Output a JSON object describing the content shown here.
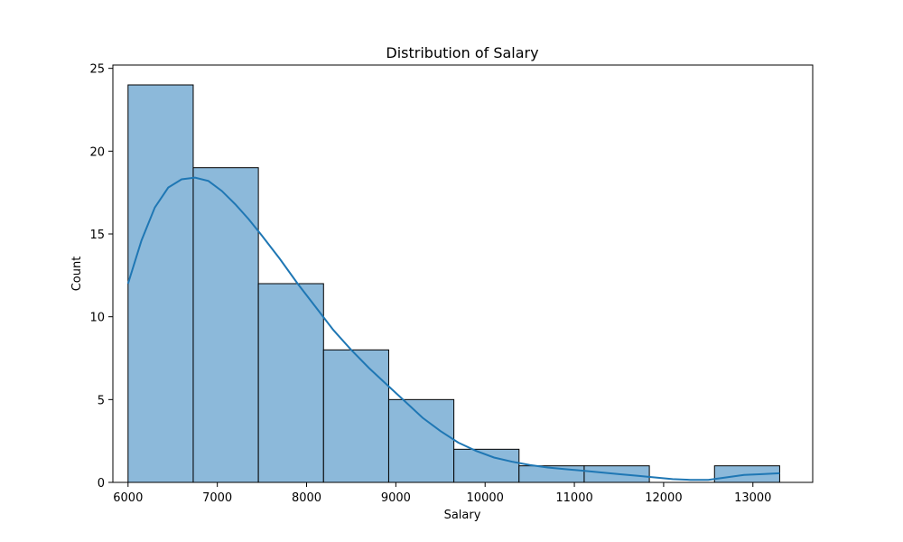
{
  "chart_data": {
    "type": "bar",
    "subtype": "histogram",
    "title": "Distribution of Salary",
    "xlabel": "Salary",
    "ylabel": "Count",
    "xlim": [
      5830,
      13670
    ],
    "ylim": [
      0,
      25.2
    ],
    "x_ticks": [
      6000,
      7000,
      8000,
      9000,
      10000,
      11000,
      12000,
      13000
    ],
    "y_ticks": [
      0,
      5,
      10,
      15,
      20,
      25
    ],
    "bins": [
      {
        "start": 6000,
        "end": 6730,
        "count": 24
      },
      {
        "start": 6730,
        "end": 7460,
        "count": 19
      },
      {
        "start": 7460,
        "end": 8190,
        "count": 12
      },
      {
        "start": 8190,
        "end": 8920,
        "count": 8
      },
      {
        "start": 8920,
        "end": 9650,
        "count": 5
      },
      {
        "start": 9650,
        "end": 10380,
        "count": 2
      },
      {
        "start": 10380,
        "end": 11110,
        "count": 1
      },
      {
        "start": 11110,
        "end": 11840,
        "count": 1
      },
      {
        "start": 11840,
        "end": 12570,
        "count": 0
      },
      {
        "start": 12570,
        "end": 13300,
        "count": 1
      }
    ],
    "kde": {
      "x": [
        6000,
        6150,
        6300,
        6450,
        6600,
        6750,
        6900,
        7050,
        7200,
        7350,
        7500,
        7700,
        7900,
        8100,
        8300,
        8500,
        8700,
        8900,
        9100,
        9300,
        9500,
        9700,
        9900,
        10100,
        10300,
        10500,
        10700,
        10900,
        11100,
        11300,
        11500,
        11700,
        11900,
        12100,
        12300,
        12500,
        12700,
        12900,
        13100,
        13300
      ],
      "y": [
        12.0,
        14.6,
        16.6,
        17.8,
        18.3,
        18.4,
        18.2,
        17.6,
        16.8,
        15.9,
        14.9,
        13.5,
        12.0,
        10.6,
        9.2,
        8.0,
        6.9,
        5.9,
        4.9,
        3.9,
        3.1,
        2.4,
        1.9,
        1.5,
        1.25,
        1.05,
        0.9,
        0.8,
        0.7,
        0.6,
        0.5,
        0.4,
        0.3,
        0.2,
        0.15,
        0.15,
        0.3,
        0.45,
        0.5,
        0.55
      ]
    },
    "grid": false,
    "bar_color": "#8cb9da",
    "bar_edge_color": "#000000",
    "line_color": "#1f77b4"
  }
}
